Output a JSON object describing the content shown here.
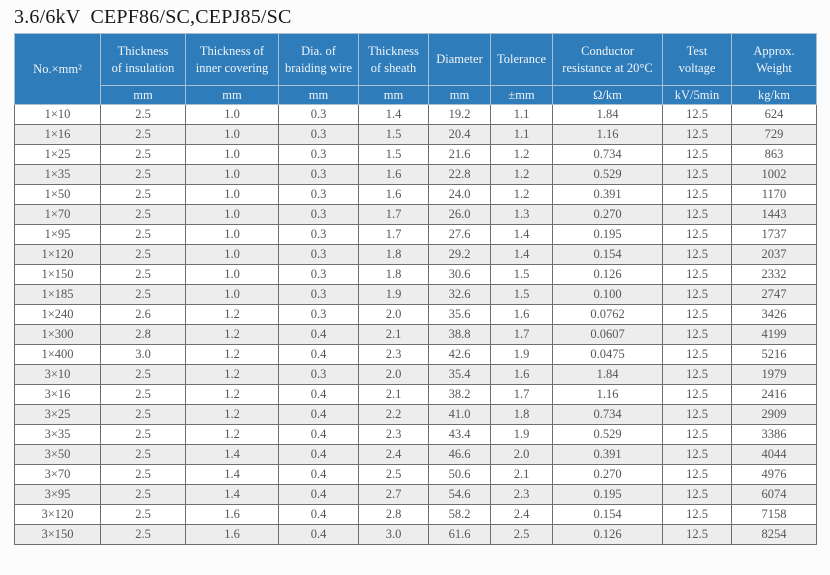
{
  "title": "3.6/6kV  CEPF86/SC,CEPJ85/SC",
  "colors": {
    "header_bg": "#2e7cba",
    "header_text": "#f0f5fa",
    "header_grid": "#a7c0d4",
    "stripe": "#ededed",
    "grid": "#6f6f6f",
    "text": "#575757",
    "title_color": "#181818",
    "page_bg": "#fcfcfc"
  },
  "table": {
    "columns": [
      {
        "label": "No.×mm²",
        "unit": null
      },
      {
        "label": "Thickness\nof insulation",
        "unit": "mm"
      },
      {
        "label": "Thickness of\ninner covering",
        "unit": "mm"
      },
      {
        "label": "Dia. of\nbraiding wire",
        "unit": "mm"
      },
      {
        "label": "Thickness\nof sheath",
        "unit": "mm"
      },
      {
        "label": "Diameter",
        "unit": "mm"
      },
      {
        "label": "Tolerance",
        "unit": "±mm"
      },
      {
        "label": "Conductor\nresistance at 20°C",
        "unit": "Ω/km"
      },
      {
        "label": "Test\nvoltage",
        "unit": "kV/5min"
      },
      {
        "label": "Approx.\nWeight",
        "unit": "kg/km"
      }
    ],
    "rows": [
      [
        "1×10",
        "2.5",
        "1.0",
        "0.3",
        "1.4",
        "19.2",
        "1.1",
        "1.84",
        "12.5",
        "624"
      ],
      [
        "1×16",
        "2.5",
        "1.0",
        "0.3",
        "1.5",
        "20.4",
        "1.1",
        "1.16",
        "12.5",
        "729"
      ],
      [
        "1×25",
        "2.5",
        "1.0",
        "0.3",
        "1.5",
        "21.6",
        "1.2",
        "0.734",
        "12.5",
        "863"
      ],
      [
        "1×35",
        "2.5",
        "1.0",
        "0.3",
        "1.6",
        "22.8",
        "1.2",
        "0.529",
        "12.5",
        "1002"
      ],
      [
        "1×50",
        "2.5",
        "1.0",
        "0.3",
        "1.6",
        "24.0",
        "1.2",
        "0.391",
        "12.5",
        "1170"
      ],
      [
        "1×70",
        "2.5",
        "1.0",
        "0.3",
        "1.7",
        "26.0",
        "1.3",
        "0.270",
        "12.5",
        "1443"
      ],
      [
        "1×95",
        "2.5",
        "1.0",
        "0.3",
        "1.7",
        "27.6",
        "1.4",
        "0.195",
        "12.5",
        "1737"
      ],
      [
        "1×120",
        "2.5",
        "1.0",
        "0.3",
        "1.8",
        "29.2",
        "1.4",
        "0.154",
        "12.5",
        "2037"
      ],
      [
        "1×150",
        "2.5",
        "1.0",
        "0.3",
        "1.8",
        "30.6",
        "1.5",
        "0.126",
        "12.5",
        "2332"
      ],
      [
        "1×185",
        "2.5",
        "1.0",
        "0.3",
        "1.9",
        "32.6",
        "1.5",
        "0.100",
        "12.5",
        "2747"
      ],
      [
        "1×240",
        "2.6",
        "1.2",
        "0.3",
        "2.0",
        "35.6",
        "1.6",
        "0.0762",
        "12.5",
        "3426"
      ],
      [
        "1×300",
        "2.8",
        "1.2",
        "0.4",
        "2.1",
        "38.8",
        "1.7",
        "0.0607",
        "12.5",
        "4199"
      ],
      [
        "1×400",
        "3.0",
        "1.2",
        "0.4",
        "2.3",
        "42.6",
        "1.9",
        "0.0475",
        "12.5",
        "5216"
      ],
      [
        "3×10",
        "2.5",
        "1.2",
        "0.3",
        "2.0",
        "35.4",
        "1.6",
        "1.84",
        "12.5",
        "1979"
      ],
      [
        "3×16",
        "2.5",
        "1.2",
        "0.4",
        "2.1",
        "38.2",
        "1.7",
        "1.16",
        "12.5",
        "2416"
      ],
      [
        "3×25",
        "2.5",
        "1.2",
        "0.4",
        "2.2",
        "41.0",
        "1.8",
        "0.734",
        "12.5",
        "2909"
      ],
      [
        "3×35",
        "2.5",
        "1.2",
        "0.4",
        "2.3",
        "43.4",
        "1.9",
        "0.529",
        "12.5",
        "3386"
      ],
      [
        "3×50",
        "2.5",
        "1.4",
        "0.4",
        "2.4",
        "46.6",
        "2.0",
        "0.391",
        "12.5",
        "4044"
      ],
      [
        "3×70",
        "2.5",
        "1.4",
        "0.4",
        "2.5",
        "50.6",
        "2.1",
        "0.270",
        "12.5",
        "4976"
      ],
      [
        "3×95",
        "2.5",
        "1.4",
        "0.4",
        "2.7",
        "54.6",
        "2.3",
        "0.195",
        "12.5",
        "6074"
      ],
      [
        "3×120",
        "2.5",
        "1.6",
        "0.4",
        "2.8",
        "58.2",
        "2.4",
        "0.154",
        "12.5",
        "7158"
      ],
      [
        "3×150",
        "2.5",
        "1.6",
        "0.4",
        "3.0",
        "61.6",
        "2.5",
        "0.126",
        "12.5",
        "8254"
      ]
    ]
  }
}
